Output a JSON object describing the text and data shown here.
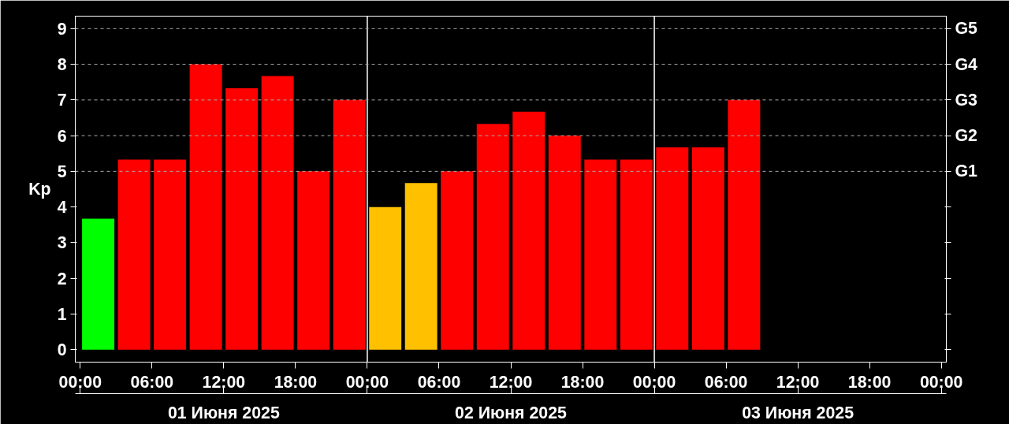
{
  "chart_data": {
    "type": "bar",
    "ylabel": "Kp",
    "x": [
      "2025-06-01T01:30",
      "2025-06-01T04:30",
      "2025-06-01T07:30",
      "2025-06-01T10:30",
      "2025-06-01T13:30",
      "2025-06-01T16:30",
      "2025-06-01T19:30",
      "2025-06-01T22:30",
      "2025-06-02T01:30",
      "2025-06-02T04:30",
      "2025-06-02T07:30",
      "2025-06-02T10:30",
      "2025-06-02T13:30",
      "2025-06-02T16:30",
      "2025-06-02T19:30",
      "2025-06-02T22:30",
      "2025-06-03T01:30",
      "2025-06-03T04:30",
      "2025-06-03T07:30"
    ],
    "values": [
      3.67,
      5.33,
      5.33,
      8,
      7.33,
      7.67,
      5,
      7,
      4,
      4.67,
      5,
      6.33,
      6.67,
      6,
      5.33,
      5.33,
      5.67,
      5.67,
      7
    ],
    "colors": [
      "#00ff00",
      "#ff0000",
      "#ff0000",
      "#ff0000",
      "#ff0000",
      "#ff0000",
      "#ff0000",
      "#ff0000",
      "#ffc000",
      "#ffc000",
      "#ff0000",
      "#ff0000",
      "#ff0000",
      "#ff0000",
      "#ff0000",
      "#ff0000",
      "#ff0000",
      "#ff0000",
      "#ff0000"
    ],
    "xlim": [
      "2025-05-31T23:35",
      "2025-06-04T00:25"
    ],
    "xticks": [
      {
        "value": "2025-06-01T00:00",
        "label": "00:00"
      },
      {
        "value": "2025-06-01T06:00",
        "label": "06:00"
      },
      {
        "value": "2025-06-01T12:00",
        "label": "12:00"
      },
      {
        "value": "2025-06-01T18:00",
        "label": "18:00"
      },
      {
        "value": "2025-06-02T00:00",
        "label": "00:00"
      },
      {
        "value": "2025-06-02T06:00",
        "label": "06:00"
      },
      {
        "value": "2025-06-02T12:00",
        "label": "12:00"
      },
      {
        "value": "2025-06-02T18:00",
        "label": "18:00"
      },
      {
        "value": "2025-06-03T00:00",
        "label": "00:00"
      },
      {
        "value": "2025-06-03T06:00",
        "label": "06:00"
      },
      {
        "value": "2025-06-03T12:00",
        "label": "12:00"
      },
      {
        "value": "2025-06-03T18:00",
        "label": "18:00"
      },
      {
        "value": "2025-06-04T00:00",
        "label": "00:00"
      }
    ],
    "ylim": [
      -0.35,
      9.35
    ],
    "yticks": [
      0,
      1,
      2,
      3,
      4,
      5,
      6,
      7,
      8,
      9
    ],
    "ref_lines": [
      {
        "axis": "x",
        "value": "2025-06-02T00:00",
        "color": "#ffffff",
        "line_style": "solid"
      },
      {
        "axis": "x",
        "value": "2025-06-03T00:00",
        "color": "#ffffff",
        "line_style": "solid"
      },
      {
        "axis": "y",
        "value": 5,
        "label": "G1",
        "color": "#aaaaaa",
        "line_style": "dashed"
      },
      {
        "axis": "y",
        "value": 6,
        "label": "G2",
        "color": "#aaaaaa",
        "line_style": "dashed"
      },
      {
        "axis": "y",
        "value": 7,
        "label": "G3",
        "color": "#aaaaaa",
        "line_style": "dashed"
      },
      {
        "axis": "y",
        "value": 8,
        "label": "G4",
        "color": "#aaaaaa",
        "line_style": "dashed"
      },
      {
        "axis": "y",
        "value": 9,
        "label": "G5",
        "color": "#aaaaaa",
        "line_style": "dashed"
      }
    ],
    "annotations": [
      "01 Июня 2025",
      "02 Июня 2025",
      "03 Июня 2025"
    ]
  }
}
